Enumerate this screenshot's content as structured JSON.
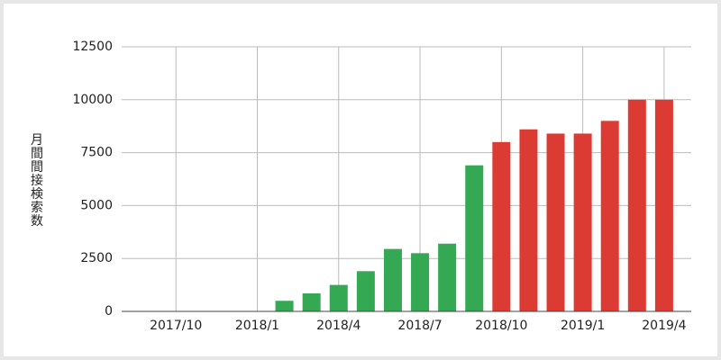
{
  "chart_data": {
    "type": "bar",
    "y_label": "月間間接検索数",
    "categories": [
      null,
      null,
      "2017/10",
      null,
      null,
      "2018/1",
      null,
      null,
      "2018/4",
      null,
      null,
      "2018/7",
      null,
      null,
      "2018/10",
      null,
      null,
      "2019/1",
      null,
      null,
      "2019/4",
      null
    ],
    "values": [
      null,
      0,
      0,
      0,
      0,
      0,
      500,
      850,
      1250,
      1900,
      2950,
      2750,
      3200,
      6900,
      8000,
      8600,
      8400,
      8400,
      9000,
      10000,
      10000,
      null
    ],
    "colors": [
      null,
      "#34a853",
      "#34a853",
      "#34a853",
      "#34a853",
      "#34a853",
      "#34a853",
      "#34a853",
      "#34a853",
      "#34a853",
      "#34a853",
      "#34a853",
      "#34a853",
      "#34a853",
      "#db3b33",
      "#db3b33",
      "#db3b33",
      "#db3b33",
      "#db3b33",
      "#db3b33",
      "#db3b33",
      null
    ],
    "ylim": [
      0,
      12500
    ],
    "yticks": [
      0,
      2500,
      5000,
      7500,
      10000,
      12500
    ],
    "grid": true
  }
}
